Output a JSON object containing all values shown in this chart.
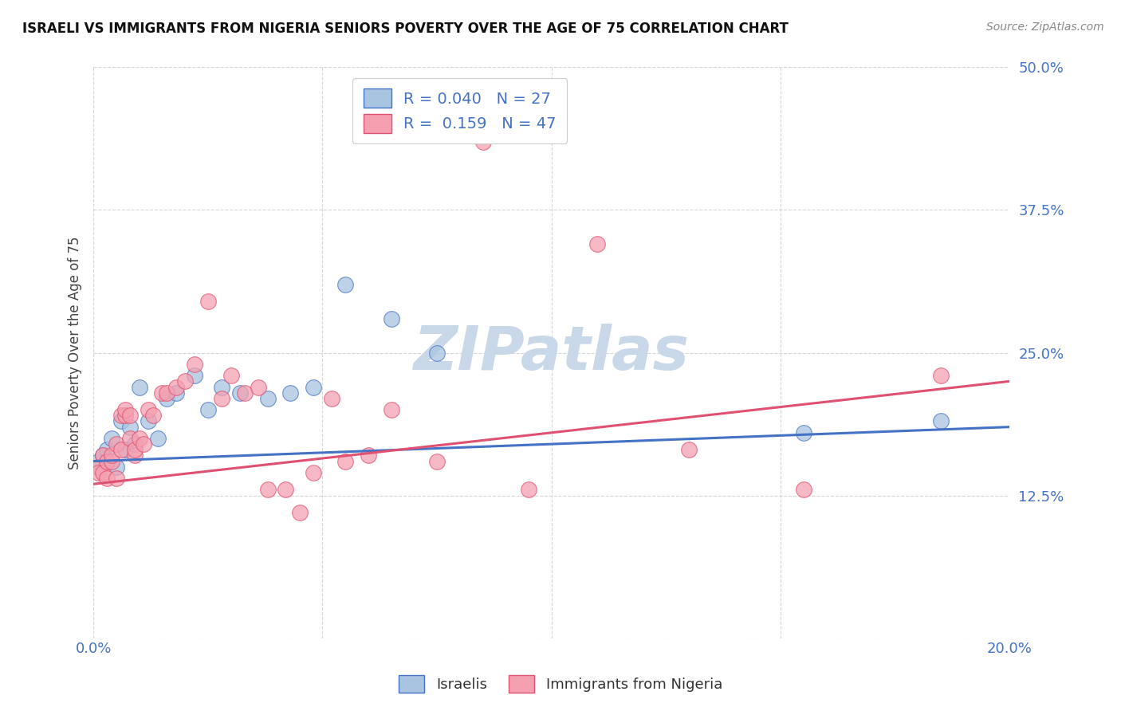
{
  "title": "ISRAELI VS IMMIGRANTS FROM NIGERIA SENIORS POVERTY OVER THE AGE OF 75 CORRELATION CHART",
  "source": "Source: ZipAtlas.com",
  "ylabel": "Seniors Poverty Over the Age of 75",
  "xmin": 0.0,
  "xmax": 0.2,
  "ymin": 0.0,
  "ymax": 0.5,
  "yticks": [
    0.0,
    0.125,
    0.25,
    0.375,
    0.5
  ],
  "ytick_labels": [
    "",
    "12.5%",
    "25.0%",
    "37.5%",
    "50.0%"
  ],
  "xticks": [
    0.0,
    0.05,
    0.1,
    0.15,
    0.2
  ],
  "xtick_labels": [
    "0.0%",
    "",
    "",
    "",
    "20.0%"
  ],
  "color_israeli": "#a8c4e0",
  "color_nigeria": "#f4a0b0",
  "color_line_israeli": "#4472c4",
  "color_line_nigeria": "#e05070",
  "R_israeli": 0.04,
  "N_israeli": 27,
  "R_nigeria": 0.159,
  "N_nigeria": 47,
  "legend_labels": [
    "Israelis",
    "Immigrants from Nigeria"
  ],
  "israeli_x": [
    0.001,
    0.002,
    0.003,
    0.003,
    0.004,
    0.005,
    0.006,
    0.007,
    0.008,
    0.009,
    0.01,
    0.012,
    0.014,
    0.016,
    0.018,
    0.022,
    0.025,
    0.028,
    0.032,
    0.038,
    0.043,
    0.048,
    0.055,
    0.065,
    0.075,
    0.155,
    0.185
  ],
  "israeli_y": [
    0.155,
    0.16,
    0.165,
    0.155,
    0.175,
    0.15,
    0.19,
    0.165,
    0.185,
    0.17,
    0.22,
    0.19,
    0.175,
    0.21,
    0.215,
    0.23,
    0.2,
    0.22,
    0.215,
    0.21,
    0.215,
    0.22,
    0.31,
    0.28,
    0.25,
    0.18,
    0.19
  ],
  "nigeria_x": [
    0.001,
    0.001,
    0.002,
    0.002,
    0.003,
    0.003,
    0.004,
    0.004,
    0.005,
    0.005,
    0.006,
    0.006,
    0.007,
    0.007,
    0.008,
    0.008,
    0.009,
    0.009,
    0.01,
    0.011,
    0.012,
    0.013,
    0.015,
    0.016,
    0.018,
    0.02,
    0.022,
    0.025,
    0.028,
    0.03,
    0.033,
    0.036,
    0.038,
    0.042,
    0.045,
    0.048,
    0.052,
    0.055,
    0.06,
    0.065,
    0.075,
    0.085,
    0.095,
    0.11,
    0.13,
    0.155,
    0.185
  ],
  "nigeria_y": [
    0.15,
    0.145,
    0.16,
    0.145,
    0.155,
    0.14,
    0.155,
    0.16,
    0.14,
    0.17,
    0.165,
    0.195,
    0.195,
    0.2,
    0.195,
    0.175,
    0.16,
    0.165,
    0.175,
    0.17,
    0.2,
    0.195,
    0.215,
    0.215,
    0.22,
    0.225,
    0.24,
    0.295,
    0.21,
    0.23,
    0.215,
    0.22,
    0.13,
    0.13,
    0.11,
    0.145,
    0.21,
    0.155,
    0.16,
    0.2,
    0.155,
    0.435,
    0.13,
    0.345,
    0.165,
    0.13,
    0.23
  ],
  "background_color": "#ffffff",
  "grid_color": "#cccccc",
  "tick_color": "#4472c4",
  "title_color": "#111111",
  "watermark": "ZIPatlas",
  "watermark_color": "#c8d8e8"
}
